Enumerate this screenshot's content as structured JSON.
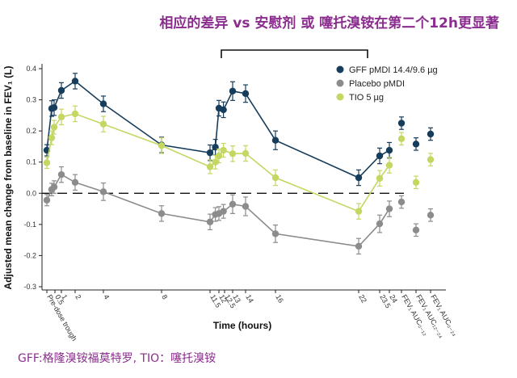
{
  "banner": "相应的差异 vs 安慰剂 或 噻托溴铵在第二个12h更显著",
  "footnote": "GFF:格隆溴铵福莫特罗, TIO：噻托溴铵",
  "chart_data": {
    "type": "line",
    "xlabel": "Time (hours)",
    "ylabel": "Adjusted mean change from baseline in FEV₁ (L)",
    "ylim": [
      -0.3,
      0.4
    ],
    "yticks": [
      -0.3,
      -0.2,
      -0.1,
      0.0,
      0.1,
      0.2,
      0.3,
      0.4
    ],
    "ytick_labels": [
      "-0.3",
      "-0.2",
      "-0.1",
      "0.0",
      "0.1",
      "0.2",
      "0.3",
      "0.4"
    ],
    "xticks": [
      "Pre-dose trough",
      "0.5",
      "1",
      "2",
      "4",
      "8",
      "11.5",
      "12",
      "12.5",
      "13",
      "14",
      "16",
      "22",
      "23.5",
      "24",
      "FEV₁ AUC₀₋₁₂",
      "FEV₁ AUC₁₂₋₂₄",
      "FEV₁ AUC₀₋₂₄"
    ],
    "zero_line": "dashed",
    "legend_position": "top-right",
    "series": [
      {
        "name": "GFF pMDI 14.4/9.6 µg",
        "color": "#173d5c",
        "segments": [
          [
            [
              -0.3,
              0.138,
              0.018
            ],
            [
              0.0,
              0.272,
              0.025
            ],
            [
              0.25,
              0.275,
              0.025
            ],
            [
              1,
              0.33,
              0.025
            ],
            [
              2,
              0.36,
              0.025
            ],
            [
              4,
              0.287,
              0.025
            ],
            [
              8,
              0.155,
              0.025
            ],
            [
              11.5,
              0.13,
              0.025
            ],
            [
              11.8,
              0.148,
              0.025
            ],
            [
              12,
              0.273,
              0.025
            ],
            [
              12.4,
              0.268,
              0.025
            ],
            [
              13,
              0.328,
              0.03
            ],
            [
              14,
              0.32,
              0.028
            ],
            [
              16,
              0.17,
              0.03
            ],
            [
              22,
              0.05,
              0.025
            ],
            [
              23.5,
              0.12,
              0.025
            ],
            [
              24,
              0.138,
              0.025
            ]
          ]
        ],
        "summary": [
          {
            "x": "FEV₁ AUC₀₋₁₂",
            "y": 0.225,
            "err": 0.02
          },
          {
            "x": "FEV₁ AUC₁₂₋₂₄",
            "y": 0.158,
            "err": 0.02
          },
          {
            "x": "FEV₁ AUC₀₋₂₄",
            "y": 0.19,
            "err": 0.02
          }
        ]
      },
      {
        "name": "Placebo pMDI",
        "color": "#8c8c8c",
        "segments": [
          [
            [
              -0.3,
              -0.022,
              0.018
            ],
            [
              0.0,
              0.012,
              0.02
            ],
            [
              0.25,
              0.02,
              0.02
            ],
            [
              1,
              0.06,
              0.025
            ],
            [
              2,
              0.035,
              0.025
            ],
            [
              4,
              0.005,
              0.028
            ],
            [
              8,
              -0.065,
              0.025
            ],
            [
              11.5,
              -0.092,
              0.025
            ],
            [
              11.8,
              -0.068,
              0.022
            ],
            [
              12,
              -0.065,
              0.022
            ],
            [
              12.4,
              -0.058,
              0.022
            ],
            [
              13,
              -0.035,
              0.03
            ],
            [
              14,
              -0.042,
              0.03
            ],
            [
              16,
              -0.13,
              0.028
            ],
            [
              22,
              -0.17,
              0.025
            ],
            [
              23.5,
              -0.098,
              0.028
            ],
            [
              24,
              -0.05,
              0.025
            ]
          ]
        ],
        "summary": [
          {
            "x": "FEV₁ AUC₀₋₁₂",
            "y": -0.028,
            "err": 0.02
          },
          {
            "x": "FEV₁ AUC₁₂₋₂₄",
            "y": -0.118,
            "err": 0.02
          },
          {
            "x": "FEV₁ AUC₀₋₂₄",
            "y": -0.07,
            "err": 0.02
          }
        ]
      },
      {
        "name": "TIO 5 µg",
        "color": "#c4d763",
        "segments": [
          [
            [
              -0.3,
              0.098,
              0.018
            ],
            [
              0.0,
              0.178,
              0.022
            ],
            [
              0.25,
              0.212,
              0.022
            ],
            [
              1,
              0.245,
              0.025
            ],
            [
              2,
              0.255,
              0.025
            ],
            [
              4,
              0.222,
              0.025
            ],
            [
              8,
              0.153,
              0.025
            ],
            [
              11.5,
              0.085,
              0.022
            ],
            [
              11.8,
              0.1,
              0.022
            ],
            [
              12,
              0.12,
              0.022
            ],
            [
              12.4,
              0.138,
              0.022
            ],
            [
              13,
              0.127,
              0.025
            ],
            [
              14,
              0.128,
              0.025
            ],
            [
              16,
              0.05,
              0.025
            ],
            [
              22,
              -0.058,
              0.025
            ],
            [
              23.5,
              0.048,
              0.025
            ],
            [
              24,
              0.09,
              0.025
            ]
          ]
        ],
        "summary": [
          {
            "x": "FEV₁ AUC₀₋₁₂",
            "y": 0.175,
            "err": 0.02
          },
          {
            "x": "FEV₁ AUC₁₂₋₂₄",
            "y": 0.035,
            "err": 0.02
          },
          {
            "x": "FEV₁ AUC₀₋₂₄",
            "y": 0.108,
            "err": 0.02
          }
        ]
      }
    ]
  }
}
